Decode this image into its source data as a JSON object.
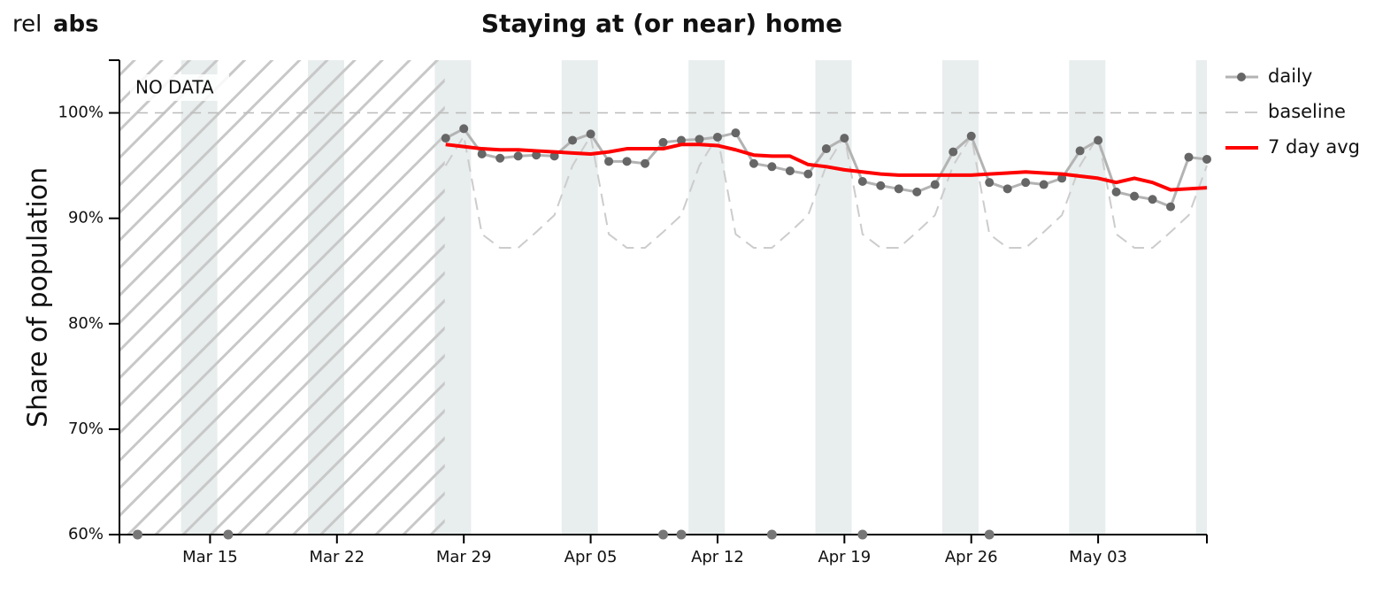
{
  "controls": [
    "rel",
    "abs"
  ],
  "chart_data": {
    "type": "line",
    "title": "Staying at (or near) home",
    "y_label": "Share of population",
    "annotation": "NO DATA",
    "categories": [
      null,
      null,
      null,
      null,
      null,
      "Mar 15",
      null,
      null,
      null,
      null,
      null,
      null,
      "Mar 22",
      null,
      null,
      null,
      null,
      null,
      null,
      "Mar 29",
      null,
      null,
      null,
      null,
      null,
      null,
      "Apr 05",
      null,
      null,
      null,
      null,
      null,
      null,
      "Apr 12",
      null,
      null,
      null,
      null,
      null,
      null,
      "Apr 19",
      null,
      null,
      null,
      null,
      null,
      null,
      "Apr 26",
      null,
      null,
      null,
      null,
      null,
      null,
      "May 03",
      null,
      null,
      null,
      null,
      null,
      null
    ],
    "series": [
      {
        "name": "daily",
        "color": "#b3b3b3",
        "marker_color": "#666666",
        "style": "solid-dots",
        "values": [
          null,
          null,
          null,
          null,
          null,
          null,
          null,
          null,
          null,
          null,
          null,
          null,
          null,
          null,
          null,
          null,
          null,
          null,
          97.6,
          98.5,
          96.1,
          95.7,
          95.9,
          96.0,
          95.9,
          97.4,
          98.0,
          95.4,
          95.4,
          95.2,
          97.2,
          97.4,
          97.5,
          97.7,
          98.1,
          95.2,
          94.9,
          94.5,
          94.2,
          96.6,
          97.6,
          93.5,
          93.1,
          92.8,
          92.5,
          93.2,
          96.3,
          97.8,
          93.4,
          92.8,
          93.4,
          93.2,
          93.8,
          96.4,
          97.4,
          92.5,
          92.1,
          91.8,
          91.1,
          95.8,
          95.6
        ]
      },
      {
        "name": "baseline",
        "color": "#cccccc",
        "style": "dashed",
        "values": [
          null,
          null,
          null,
          null,
          null,
          null,
          null,
          null,
          null,
          null,
          null,
          null,
          null,
          null,
          null,
          null,
          null,
          null,
          95.0,
          97.8,
          88.5,
          87.2,
          87.2,
          88.7,
          90.3,
          95.0,
          97.8,
          88.5,
          87.2,
          87.2,
          88.7,
          90.3,
          95.0,
          97.8,
          88.5,
          87.2,
          87.2,
          88.7,
          90.3,
          95.0,
          97.8,
          88.5,
          87.2,
          87.2,
          88.7,
          90.3,
          95.0,
          97.8,
          88.5,
          87.2,
          87.2,
          88.7,
          90.3,
          95.0,
          97.8,
          88.5,
          87.2,
          87.2,
          88.7,
          90.3,
          95.0
        ]
      },
      {
        "name": "7 day avg",
        "color": "#ff0000",
        "style": "thick",
        "values": [
          null,
          null,
          null,
          null,
          null,
          null,
          null,
          null,
          null,
          null,
          null,
          null,
          null,
          null,
          null,
          null,
          null,
          null,
          97.0,
          96.8,
          96.6,
          96.5,
          96.5,
          96.4,
          96.3,
          96.2,
          96.1,
          96.3,
          96.6,
          96.6,
          96.6,
          97.0,
          97.0,
          96.9,
          96.5,
          96.0,
          95.9,
          95.9,
          95.1,
          94.9,
          94.6,
          94.4,
          94.2,
          94.1,
          94.1,
          94.1,
          94.1,
          94.1,
          94.2,
          94.3,
          94.4,
          94.3,
          94.2,
          94.0,
          93.8,
          93.4,
          93.8,
          93.4,
          92.7,
          92.8,
          92.9
        ]
      }
    ],
    "markers": {
      "color": "#777777",
      "values": [
        null,
        60,
        null,
        null,
        null,
        null,
        60,
        null,
        null,
        null,
        null,
        null,
        null,
        null,
        null,
        null,
        null,
        null,
        null,
        null,
        null,
        null,
        null,
        null,
        null,
        null,
        null,
        null,
        null,
        null,
        60,
        60,
        null,
        null,
        null,
        null,
        60,
        null,
        null,
        null,
        null,
        60,
        null,
        null,
        null,
        null,
        null,
        null,
        60,
        null,
        null,
        null,
        null,
        null,
        null,
        null,
        null,
        null,
        null,
        null,
        null
      ]
    },
    "reference_line": 100,
    "ylim": [
      60,
      105
    ],
    "yticks": [
      {
        "value": 60,
        "label": "60%"
      },
      {
        "value": 70,
        "label": "70%"
      },
      {
        "value": 80,
        "label": "80%"
      },
      {
        "value": 90,
        "label": "90%"
      },
      {
        "value": 100,
        "label": "100%"
      }
    ],
    "legend": "top-right"
  }
}
